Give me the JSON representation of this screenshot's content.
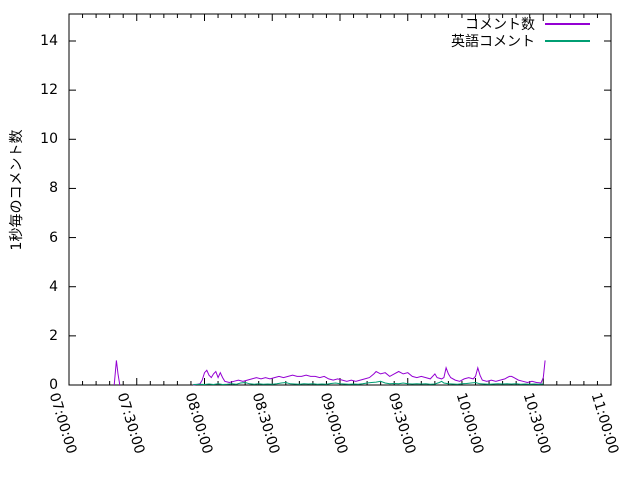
{
  "chart_data": {
    "type": "line",
    "title": "",
    "xlabel": "",
    "ylabel": "1秒毎のコメント数",
    "x_tick_labels": [
      "07:00:00",
      "07:30:00",
      "08:00:00",
      "08:30:00",
      "09:00:00",
      "09:30:00",
      "10:00:00",
      "10:30:00",
      "11:00:00"
    ],
    "x_range_minutes": [
      0,
      240
    ],
    "x_major_tick_minutes": 30,
    "x_minor_tick_minutes": 6,
    "yticks": [
      0,
      2,
      4,
      6,
      8,
      10,
      12,
      14
    ],
    "ylim": [
      0,
      15.1
    ],
    "grid": false,
    "legend_position": "top-right-inside",
    "axis_color": "#000000",
    "series": [
      {
        "name": "コメント数",
        "color": "#9400d3",
        "runs": [
          [
            [
              20,
              0
            ],
            [
              21,
              1.0
            ],
            [
              21.7,
              0.45
            ],
            [
              22.5,
              0
            ]
          ],
          [
            [
              55,
              0
            ],
            [
              57,
              0.03
            ],
            [
              58,
              0.05
            ],
            [
              59,
              0.2
            ],
            [
              60,
              0.5
            ],
            [
              61,
              0.6
            ],
            [
              62,
              0.4
            ],
            [
              63,
              0.3
            ],
            [
              64,
              0.45
            ],
            [
              65,
              0.55
            ],
            [
              66,
              0.3
            ],
            [
              67,
              0.5
            ],
            [
              68,
              0.3
            ],
            [
              69,
              0.15
            ],
            [
              71,
              0.1
            ],
            [
              73,
              0.15
            ],
            [
              75,
              0.2
            ],
            [
              77,
              0.15
            ],
            [
              79,
              0.2
            ],
            [
              81,
              0.25
            ],
            [
              83,
              0.3
            ],
            [
              85,
              0.25
            ],
            [
              87,
              0.3
            ],
            [
              89,
              0.25
            ],
            [
              91,
              0.3
            ],
            [
              93,
              0.35
            ],
            [
              95,
              0.3
            ],
            [
              97,
              0.35
            ],
            [
              99,
              0.4
            ],
            [
              101,
              0.35
            ],
            [
              103,
              0.35
            ],
            [
              105,
              0.4
            ],
            [
              107,
              0.35
            ],
            [
              109,
              0.35
            ],
            [
              111,
              0.3
            ],
            [
              113,
              0.35
            ],
            [
              115,
              0.25
            ],
            [
              117,
              0.2
            ],
            [
              119,
              0.25
            ],
            [
              121,
              0.2
            ],
            [
              123,
              0.15
            ],
            [
              125,
              0.2
            ],
            [
              127,
              0.15
            ],
            [
              129,
              0.2
            ],
            [
              131,
              0.25
            ],
            [
              133,
              0.3
            ],
            [
              135,
              0.45
            ],
            [
              136,
              0.55
            ],
            [
              138,
              0.45
            ],
            [
              140,
              0.5
            ],
            [
              142,
              0.35
            ],
            [
              144,
              0.45
            ],
            [
              146,
              0.55
            ],
            [
              148,
              0.45
            ],
            [
              150,
              0.5
            ],
            [
              152,
              0.35
            ],
            [
              154,
              0.3
            ],
            [
              156,
              0.35
            ],
            [
              158,
              0.3
            ],
            [
              160,
              0.25
            ],
            [
              162,
              0.45
            ],
            [
              163,
              0.3
            ],
            [
              165,
              0.25
            ],
            [
              166,
              0.3
            ],
            [
              167,
              0.7
            ],
            [
              168,
              0.45
            ],
            [
              169,
              0.3
            ],
            [
              171,
              0.2
            ],
            [
              173,
              0.15
            ],
            [
              175,
              0.25
            ],
            [
              177,
              0.3
            ],
            [
              179,
              0.25
            ],
            [
              180,
              0.35
            ],
            [
              181,
              0.7
            ],
            [
              182,
              0.4
            ],
            [
              183,
              0.2
            ],
            [
              185,
              0.15
            ],
            [
              187,
              0.2
            ],
            [
              189,
              0.15
            ],
            [
              191,
              0.2
            ],
            [
              193,
              0.25
            ],
            [
              194,
              0.3
            ],
            [
              195,
              0.35
            ],
            [
              196,
              0.35
            ],
            [
              197,
              0.3
            ],
            [
              199,
              0.2
            ],
            [
              201,
              0.15
            ],
            [
              203,
              0.1
            ],
            [
              205,
              0.15
            ],
            [
              207,
              0.1
            ],
            [
              209,
              0.08
            ],
            [
              210,
              0.3
            ],
            [
              210.8,
              1.0
            ]
          ]
        ]
      },
      {
        "name": "英語コメント",
        "color": "#009e73",
        "runs": [
          [
            [
              55,
              0.02
            ],
            [
              58,
              0.03
            ],
            [
              60,
              0.02
            ],
            [
              62,
              0.04
            ],
            [
              64,
              0.02
            ],
            [
              66,
              0.05
            ],
            [
              68,
              0.02
            ],
            [
              70,
              0.03
            ],
            [
              72,
              0.05
            ],
            [
              74,
              0.03
            ],
            [
              76,
              0.08
            ],
            [
              78,
              0.1
            ],
            [
              80,
              0.05
            ],
            [
              82,
              0.03
            ],
            [
              84,
              0.05
            ],
            [
              86,
              0.03
            ],
            [
              88,
              0.04
            ],
            [
              90,
              0.03
            ],
            [
              92,
              0.05
            ],
            [
              94,
              0.08
            ],
            [
              96,
              0.1
            ],
            [
              98,
              0.05
            ],
            [
              100,
              0.04
            ],
            [
              102,
              0.03
            ],
            [
              104,
              0.05
            ],
            [
              106,
              0.04
            ],
            [
              108,
              0.05
            ],
            [
              110,
              0.03
            ],
            [
              112,
              0.04
            ],
            [
              114,
              0.03
            ],
            [
              116,
              0.06
            ],
            [
              118,
              0.08
            ],
            [
              120,
              0.05
            ],
            [
              122,
              0.04
            ],
            [
              124,
              0.03
            ],
            [
              126,
              0.04
            ],
            [
              128,
              0.03
            ],
            [
              130,
              0.05
            ],
            [
              132,
              0.08
            ],
            [
              134,
              0.1
            ],
            [
              136,
              0.12
            ],
            [
              138,
              0.15
            ],
            [
              140,
              0.08
            ],
            [
              142,
              0.05
            ],
            [
              144,
              0.06
            ],
            [
              146,
              0.05
            ],
            [
              148,
              0.08
            ],
            [
              150,
              0.05
            ],
            [
              152,
              0.04
            ],
            [
              154,
              0.05
            ],
            [
              156,
              0.04
            ],
            [
              158,
              0.05
            ],
            [
              160,
              0.03
            ],
            [
              162,
              0.04
            ],
            [
              164,
              0.1
            ],
            [
              165,
              0.15
            ],
            [
              166,
              0.08
            ],
            [
              168,
              0.05
            ],
            [
              170,
              0.04
            ],
            [
              172,
              0.03
            ],
            [
              174,
              0.05
            ],
            [
              176,
              0.06
            ],
            [
              178,
              0.08
            ],
            [
              180,
              0.1
            ],
            [
              182,
              0.05
            ],
            [
              184,
              0.04
            ],
            [
              186,
              0.03
            ],
            [
              188,
              0.04
            ],
            [
              190,
              0.05
            ],
            [
              192,
              0.04
            ],
            [
              194,
              0.05
            ],
            [
              196,
              0.04
            ],
            [
              198,
              0.05
            ],
            [
              200,
              0.03
            ],
            [
              202,
              0.04
            ],
            [
              204,
              0.03
            ],
            [
              206,
              0.04
            ],
            [
              208,
              0.03
            ],
            [
              210,
              0.04
            ]
          ]
        ]
      }
    ]
  }
}
